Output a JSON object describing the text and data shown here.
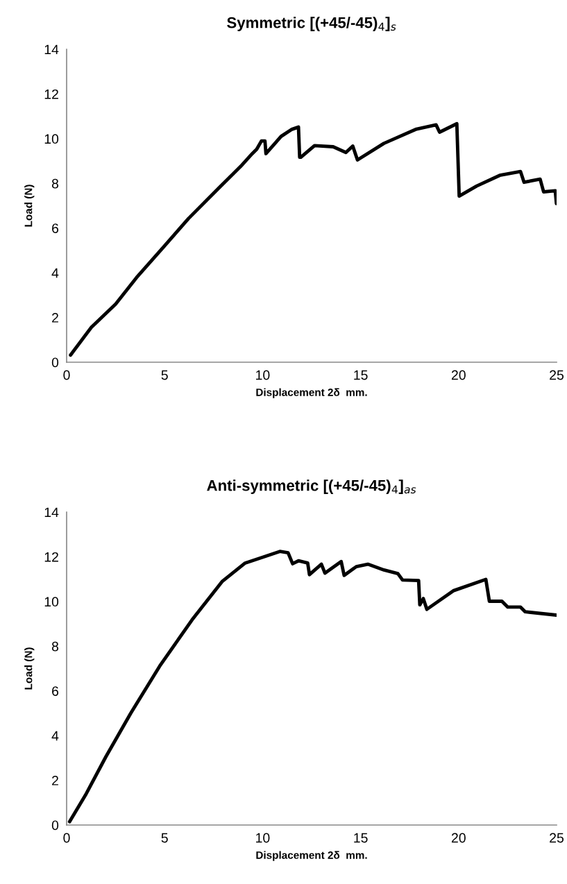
{
  "chart_data": [
    {
      "type": "line",
      "title": "Symmetric [(+45/-45)$_{4}$]$_{s}$",
      "xlabel": "Displacement 2δ  mm.",
      "ylabel": "Load (N)",
      "xlim": [
        0,
        25
      ],
      "ylim": [
        0,
        14
      ],
      "xticks": [
        0,
        5,
        10,
        15,
        20,
        25
      ],
      "yticks": [
        0,
        2,
        4,
        6,
        8,
        10,
        12,
        14
      ],
      "grid": false,
      "legend": false,
      "marker": "none",
      "line_style": "solid",
      "series": [
        {
          "color": "#000000",
          "x": [
            0.2,
            1.26,
            2.5,
            3.57,
            4.98,
            6.22,
            7.81,
            8.88,
            9.47,
            9.7,
            9.94,
            10.12,
            10.17,
            10.53,
            10.94,
            11.47,
            11.83,
            11.89,
            11.95,
            12.65,
            13.6,
            14.25,
            14.6,
            14.84,
            16.19,
            17.85,
            18.85,
            19.03,
            19.91,
            20.03,
            20.92,
            22.1,
            23.16,
            23.34,
            24.16,
            24.34,
            24.93,
            24.99
          ],
          "values": [
            0.32,
            1.56,
            2.6,
            3.79,
            5.19,
            6.43,
            7.83,
            8.76,
            9.33,
            9.53,
            9.9,
            9.9,
            9.33,
            9.69,
            10.1,
            10.41,
            10.52,
            9.17,
            9.17,
            9.69,
            9.64,
            9.38,
            9.67,
            9.05,
            9.79,
            10.43,
            10.62,
            10.29,
            10.67,
            7.43,
            7.88,
            8.36,
            8.53,
            8.05,
            8.19,
            7.62,
            7.67,
            7.1
          ]
        }
      ]
    },
    {
      "type": "line",
      "title": "Anti-symmetric [(+45/-45)$_{4}$]$_{as}$",
      "xlabel": "Displacement 2δ  mm.",
      "ylabel": "Load (N)",
      "xlim": [
        0,
        25
      ],
      "ylim": [
        0,
        14
      ],
      "xticks": [
        0,
        5,
        10,
        15,
        20,
        25
      ],
      "yticks": [
        0,
        2,
        4,
        6,
        8,
        10,
        12,
        14
      ],
      "grid": false,
      "legend": false,
      "marker": "none",
      "line_style": "solid",
      "series": [
        {
          "color": "#000000",
          "x": [
            0.15,
            1.0,
            2.0,
            3.27,
            4.75,
            6.4,
            7.93,
            9.11,
            10.17,
            10.88,
            11.3,
            11.53,
            11.83,
            12.3,
            12.39,
            13.0,
            13.18,
            14.01,
            14.16,
            14.78,
            15.37,
            16.19,
            16.9,
            17.14,
            17.96,
            18.02,
            18.2,
            18.38,
            19.73,
            21.39,
            21.57,
            22.21,
            22.51,
            23.16,
            23.4,
            25.0
          ],
          "values": [
            0.15,
            1.4,
            3.05,
            5.0,
            7.11,
            9.18,
            10.89,
            11.72,
            12.03,
            12.24,
            12.18,
            11.69,
            11.82,
            11.72,
            11.2,
            11.67,
            11.27,
            11.79,
            11.17,
            11.56,
            11.67,
            11.41,
            11.25,
            10.96,
            10.94,
            9.85,
            10.13,
            9.65,
            10.48,
            10.99,
            10.01,
            10.01,
            9.75,
            9.75,
            9.54,
            9.39
          ]
        }
      ]
    }
  ]
}
